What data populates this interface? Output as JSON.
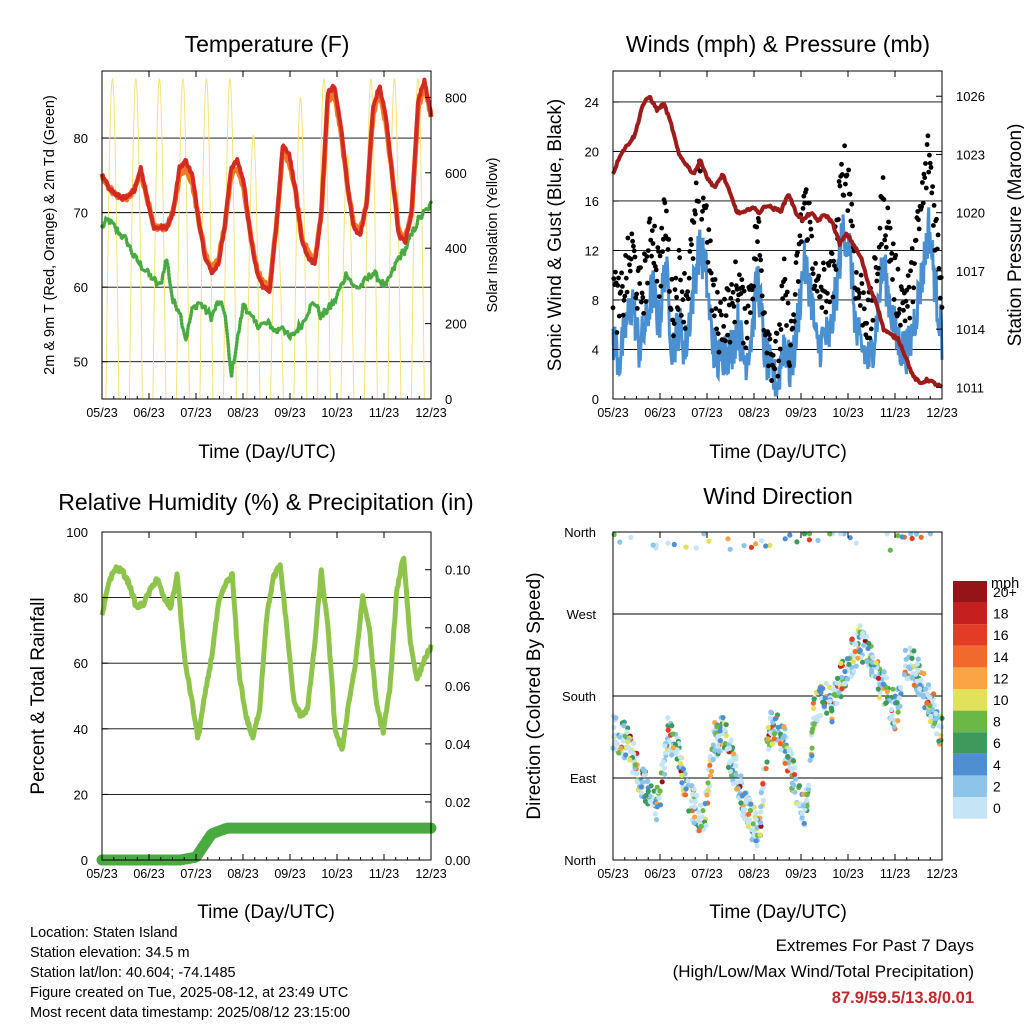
{
  "panels": {
    "temp": {
      "title": "Temperature (F)",
      "ylabel_left": "2m & 9m T (Red, Orange) & 2m Td (Green)",
      "ylabel_right": "Solar Insolation (Yellow)",
      "xlabel": "Time (Day/UTC)"
    },
    "wind": {
      "title": "Winds (mph) & Pressure (mb)",
      "ylabel_left": "Sonic Wind & Gust (Blue, Black)",
      "ylabel_right": "Station Pressure (Maroon)",
      "xlabel": "Time (Day/UTC)"
    },
    "rh": {
      "title": "Relative Humidity (%) & Precipitation (in)",
      "ylabel_left": "Percent & Total Rainfall",
      "xlabel": "Time (Day/UTC)"
    },
    "dir": {
      "title": "Wind Direction",
      "ylabel_left": "Direction (Colored By Speed)",
      "xlabel": "Time (Day/UTC)",
      "legend_title": "mph"
    }
  },
  "info": {
    "location": "Location: Staten Island",
    "elevation": "Station elevation: 34.5 m",
    "latlon": "Station lat/lon: 40.604; -74.1485",
    "created": "Figure created on Tue, 2025-08-12, at 23:49 UTC",
    "recent": "Most recent data timestamp: 2025/08/12 23:15:00"
  },
  "extremes": {
    "line1": "Extremes For Past 7 Days",
    "line2": "(High/Low/Max Wind/Total Precipitation)",
    "values": "87.9/59.5/13.8/0.01"
  },
  "chart_data": [
    {
      "id": "temp",
      "type": "line",
      "title": "Temperature (F)",
      "x_ticks": [
        "05/23",
        "06/23",
        "07/23",
        "08/23",
        "09/23",
        "10/23",
        "11/23",
        "12/23"
      ],
      "ylim": [
        45,
        89
      ],
      "y_ticks": [
        50,
        60,
        70,
        80
      ],
      "y2lim": [
        0,
        870
      ],
      "y2_ticks": [
        0,
        200,
        400,
        600,
        800
      ],
      "series": [
        {
          "name": "2m T",
          "color": "#d42a24",
          "values": [
            75,
            73.5,
            72.5,
            72,
            72,
            73,
            76,
            72,
            68,
            68,
            68,
            70,
            76,
            77,
            75,
            69,
            64,
            62,
            63,
            68,
            76,
            77,
            74,
            67,
            62,
            60,
            59.5,
            68,
            79,
            78,
            73,
            66,
            64,
            63,
            70,
            86,
            87,
            82,
            74,
            68,
            67,
            71,
            84,
            87,
            83,
            75,
            67,
            66,
            70,
            85,
            87.9,
            83
          ]
        },
        {
          "name": "9m T",
          "color": "#f07a22",
          "values": [
            75,
            73.5,
            72.5,
            72,
            72,
            73,
            75.5,
            72,
            68,
            68,
            68,
            70,
            75,
            76,
            74,
            69,
            64.5,
            62.5,
            63.5,
            68,
            75,
            76,
            73,
            67,
            62.5,
            60.5,
            60,
            68,
            78,
            77,
            73,
            66.5,
            64.5,
            63.5,
            70,
            85,
            86,
            81,
            74,
            68.5,
            67.5,
            71,
            83,
            86,
            82,
            75,
            67.5,
            66.5,
            70,
            84,
            87,
            83
          ]
        },
        {
          "name": "2m Td",
          "color": "#4aaa42",
          "values": [
            68,
            69,
            68,
            67,
            66,
            64,
            63,
            62,
            61,
            60,
            64,
            58,
            57,
            53,
            57,
            58,
            57,
            56,
            58,
            57,
            48,
            53,
            58,
            56,
            55,
            55,
            55,
            54,
            55,
            53,
            54,
            55,
            57,
            58,
            56,
            57,
            58,
            60,
            62,
            60,
            60,
            61,
            62,
            61,
            60,
            62,
            64,
            65,
            67,
            69,
            70,
            71
          ]
        },
        {
          "name": "Solar Insolation",
          "color": "#f5e27a",
          "axis": "right",
          "peaks": [
            850,
            850,
            850,
            850,
            850,
            850,
            700,
            480,
            800,
            850,
            650,
            850,
            850,
            850
          ],
          "daily_cycles": 14
        }
      ]
    },
    {
      "id": "wind",
      "type": "line",
      "title": "Winds (mph) & Pressure (mb)",
      "x_ticks": [
        "05/23",
        "06/23",
        "07/23",
        "08/23",
        "09/23",
        "10/23",
        "11/23",
        "12/23"
      ],
      "ylim": [
        0,
        26.5
      ],
      "y_ticks": [
        0,
        4,
        8,
        12,
        16,
        20,
        24
      ],
      "y2lim": [
        1010.4,
        1027.3
      ],
      "y2_ticks": [
        1011,
        1014,
        1017,
        1020,
        1023,
        1026
      ],
      "series": [
        {
          "name": "Sonic Wind",
          "color": "#4a90d0",
          "values": [
            5,
            3,
            6,
            8,
            4,
            6,
            9,
            6,
            11,
            4,
            6,
            4,
            8,
            12,
            11,
            5,
            3,
            4,
            4,
            6,
            3,
            5,
            10,
            4,
            2,
            1,
            5,
            2,
            6,
            11,
            9,
            4,
            5,
            5,
            9,
            14,
            12,
            5,
            4,
            3,
            6,
            11,
            8,
            5,
            4,
            4,
            7,
            10,
            14,
            9,
            5
          ]
        },
        {
          "name": "Gust",
          "color": "#000000",
          "values": [
            9,
            7,
            10,
            12,
            8,
            10,
            14,
            10,
            15,
            7,
            10,
            8,
            12,
            17,
            16,
            9,
            6,
            7,
            7,
            10,
            6,
            9,
            14,
            7,
            4,
            3,
            9,
            4,
            10,
            16,
            14,
            8,
            9,
            9,
            13,
            19,
            17,
            9,
            8,
            6,
            10,
            16,
            13,
            9,
            8,
            8,
            12,
            16,
            20,
            14,
            9
          ]
        },
        {
          "name": "Station Pressure",
          "color": "#9c1c1c",
          "axis": "right",
          "values": [
            1022,
            1023,
            1023.5,
            1024,
            1025.5,
            1026,
            1025.3,
            1025.6,
            1024.5,
            1023,
            1022.5,
            1022,
            1022.7,
            1021.7,
            1021.3,
            1022,
            1021,
            1020,
            1020,
            1020.3,
            1020,
            1020.4,
            1020.2,
            1020.1,
            1021,
            1020,
            1019.6,
            1020,
            1019.6,
            1019.9,
            1019.5,
            1018.4,
            1018.9,
            1018.3,
            1017.6,
            1016.2,
            1015.4,
            1014,
            1013.7,
            1013.5,
            1012.6,
            1011.6,
            1011.2,
            1011.4,
            1011.2,
            1011.0
          ]
        }
      ]
    },
    {
      "id": "rh",
      "type": "line",
      "title": "Relative Humidity (%) & Precipitation (in)",
      "x_ticks": [
        "05/23",
        "06/23",
        "07/23",
        "08/23",
        "09/23",
        "10/23",
        "11/23",
        "12/23"
      ],
      "ylim": [
        0,
        100
      ],
      "y_ticks": [
        0,
        20,
        40,
        60,
        80,
        100
      ],
      "y2lim": [
        0,
        0.113
      ],
      "y2_ticks": [
        "0.00",
        "0.02",
        "0.04",
        "0.06",
        "0.08",
        "0.10"
      ],
      "series": [
        {
          "name": "Relative Humidity",
          "color": "#8ec44b",
          "values": [
            74,
            85,
            89,
            88,
            84,
            77,
            78,
            82,
            86,
            80,
            77,
            87,
            62,
            50,
            37,
            50,
            62,
            78,
            84,
            87,
            57,
            44,
            37,
            46,
            74,
            86,
            90,
            70,
            48,
            44,
            46,
            65,
            88,
            70,
            40,
            33,
            48,
            60,
            80,
            71,
            48,
            39,
            52,
            82,
            93,
            66,
            55,
            61,
            65
          ]
        },
        {
          "name": "Total Rainfall",
          "color": "#4aaa42",
          "axis": "right",
          "values": [
            0,
            0,
            0,
            0,
            0,
            0,
            0.001,
            0.009,
            0.011,
            0.011,
            0.011,
            0.011,
            0.011,
            0.011,
            0.011,
            0.011,
            0.011,
            0.011,
            0.011,
            0.011,
            0.011,
            0.011
          ]
        }
      ]
    },
    {
      "id": "dir",
      "type": "scatter",
      "title": "Wind Direction",
      "x_ticks": [
        "05/23",
        "06/23",
        "07/23",
        "08/23",
        "09/23",
        "10/23",
        "11/23",
        "12/23"
      ],
      "y_ticks": [
        "North",
        "East",
        "South",
        "West",
        "North"
      ],
      "ylim": [
        0,
        360
      ],
      "legend": {
        "title": "mph",
        "labels": [
          "0",
          "2",
          "4",
          "6",
          "8",
          "10",
          "12",
          "14",
          "16",
          "18",
          "20+"
        ],
        "colors": [
          "#c5e5f7",
          "#8cc4ea",
          "#4f8fd0",
          "#3d9a5c",
          "#6ab846",
          "#e1e15a",
          "#f7a545",
          "#f06a2d",
          "#e23b26",
          "#c61f20",
          "#951418"
        ]
      },
      "direction_trend": [
        140,
        135,
        120,
        90,
        70,
        60,
        140,
        120,
        80,
        55,
        40,
        130,
        140,
        110,
        75,
        45,
        30,
        140,
        150,
        120,
        80,
        50,
        160,
        185,
        170,
        200,
        220,
        240,
        230,
        200,
        180,
        160,
        220,
        210,
        190,
        165,
        140
      ]
    }
  ]
}
